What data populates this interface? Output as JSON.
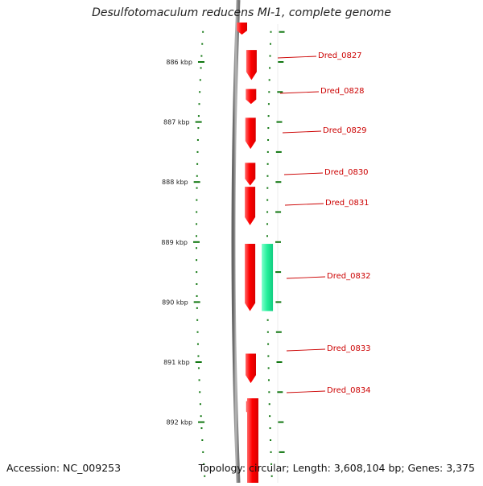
{
  "title": "Desulfotomaculum reducens MI-1, complete genome",
  "footer": {
    "accession": "Accession: NC_009253",
    "summary": "Topology: circular; Length: 3,608,104 bp; Genes: 3,375"
  },
  "colors": {
    "forward_gene": "#ff0000",
    "reverse_gene": "#22ee99",
    "tick": "#117711",
    "label": "#cc0000",
    "backbone": "#888888"
  },
  "scale": {
    "unit": "kbp",
    "ticks": [
      {
        "kbp": 886,
        "label": "886 kbp"
      },
      {
        "kbp": 887,
        "label": "887 kbp"
      },
      {
        "kbp": 888,
        "label": "888 kbp"
      },
      {
        "kbp": 889,
        "label": "889 kbp"
      },
      {
        "kbp": 890,
        "label": "890 kbp"
      },
      {
        "kbp": 891,
        "label": "891 kbp"
      },
      {
        "kbp": 892,
        "label": "892 kbp"
      }
    ]
  },
  "genes": [
    {
      "name": "Dred_0827",
      "strand": "+",
      "start_kbp": 885.8,
      "end_kbp": 886.3
    },
    {
      "name": "Dred_0828",
      "strand": "+",
      "start_kbp": 886.45,
      "end_kbp": 886.7
    },
    {
      "name": "Dred_0829",
      "strand": "+",
      "start_kbp": 886.93,
      "end_kbp": 887.45
    },
    {
      "name": "Dred_0830",
      "strand": "+",
      "start_kbp": 887.68,
      "end_kbp": 888.06
    },
    {
      "name": "Dred_0831",
      "strand": "+",
      "start_kbp": 888.08,
      "end_kbp": 888.72
    },
    {
      "name": "Dred_0832",
      "strand": "+",
      "start_kbp": 889.03,
      "end_kbp": 890.15
    },
    {
      "name": "Dred_0832",
      "strand": "-",
      "start_kbp": 889.03,
      "end_kbp": 890.15
    },
    {
      "name": "Dred_0833",
      "strand": "+",
      "start_kbp": 890.86,
      "end_kbp": 891.35
    },
    {
      "name": "Dred_0834",
      "strand": "+",
      "start_kbp": 891.65,
      "end_kbp": 891.9
    }
  ],
  "gene_labels": [
    {
      "text": "Dred_0827"
    },
    {
      "text": "Dred_0828"
    },
    {
      "text": "Dred_0829"
    },
    {
      "text": "Dred_0830"
    },
    {
      "text": "Dred_0831"
    },
    {
      "text": "Dred_0832"
    },
    {
      "text": "Dred_0833"
    },
    {
      "text": "Dred_0834"
    }
  ]
}
